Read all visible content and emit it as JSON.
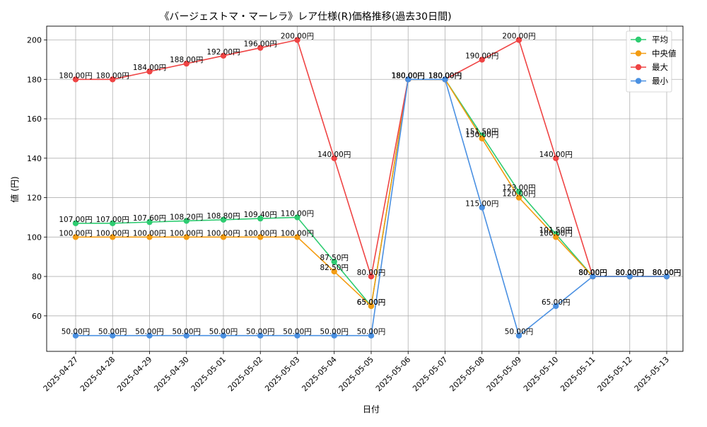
{
  "chart_data": {
    "type": "line",
    "title": "《バージェストマ・マーレラ》レア仕様(R)価格推移(過去30日間)",
    "xlabel": "日付",
    "ylabel": "値 (円)",
    "ylim": [
      42,
      207
    ],
    "yticks": [
      60,
      80,
      100,
      120,
      140,
      160,
      180,
      200
    ],
    "grid": true,
    "legend_position": "top-right",
    "value_suffix": "円",
    "categories": [
      "2025-04-27",
      "2025-04-28",
      "2025-04-29",
      "2025-04-30",
      "2025-05-01",
      "2025-05-02",
      "2025-05-03",
      "2025-05-04",
      "2025-05-05",
      "2025-05-06",
      "2025-05-07",
      "2025-05-08",
      "2025-05-09",
      "2025-05-10",
      "2025-05-11",
      "2025-05-12",
      "2025-05-13"
    ],
    "series": [
      {
        "name": "平均",
        "color": "#2ecc71",
        "values": [
          107.0,
          107.0,
          107.6,
          108.2,
          108.8,
          109.4,
          110.0,
          87.5,
          65.0,
          180.0,
          180.0,
          151.5,
          123.0,
          101.5,
          80.0,
          80.0,
          80.0
        ]
      },
      {
        "name": "中央値",
        "color": "#f39c12",
        "values": [
          100.0,
          100.0,
          100.0,
          100.0,
          100.0,
          100.0,
          100.0,
          82.5,
          65.0,
          180.0,
          180.0,
          150.0,
          120.0,
          100.0,
          80.0,
          80.0,
          80.0
        ]
      },
      {
        "name": "最大",
        "color": "#ef4444",
        "values": [
          180.0,
          180.0,
          184.0,
          188.0,
          192.0,
          196.0,
          200.0,
          140.0,
          80.0,
          180.0,
          180.0,
          190.0,
          200.0,
          140.0,
          80.0,
          80.0,
          80.0
        ]
      },
      {
        "name": "最小",
        "color": "#4a90e2",
        "values": [
          50.0,
          50.0,
          50.0,
          50.0,
          50.0,
          50.0,
          50.0,
          50.0,
          50.0,
          180.0,
          180.0,
          115.0,
          50.0,
          65.0,
          80.0,
          80.0,
          80.0
        ]
      }
    ]
  }
}
